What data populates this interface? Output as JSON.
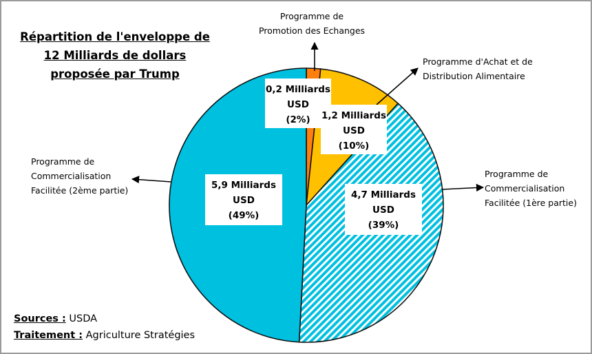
{
  "title_lines": [
    "Répartition de l'enveloppe de",
    "12 Milliards de dollars",
    "proposée par Trump"
  ],
  "footer": {
    "sources_key": "Sources :",
    "sources_value": "USDA",
    "treatment_key": "Traitement :",
    "treatment_value": "Agriculture Stratégies"
  },
  "chart_data": {
    "type": "pie",
    "unit": "Milliards USD",
    "slices": [
      {
        "name_lines": [
          "Programme de",
          "Promotion des Echanges"
        ],
        "value": 0.2,
        "value_text": "0,2 Milliards",
        "unit_text": "USD",
        "pct_text": "(2%)",
        "percent": 2,
        "color": "#ff7f0e",
        "pattern": "solid"
      },
      {
        "name_lines": [
          "Programme d'Achat et de",
          "Distribution Alimentaire"
        ],
        "value": 1.2,
        "value_text": "1,2 Milliards",
        "unit_text": "USD",
        "pct_text": "(10%)",
        "percent": 10,
        "color": "#ffc000",
        "pattern": "solid"
      },
      {
        "name_lines": [
          "Programme de",
          "Commercialisation",
          "Facilitée (1ère partie)"
        ],
        "value": 4.7,
        "value_text": "4,7 Milliards",
        "unit_text": "USD",
        "pct_text": "(39%)",
        "percent": 39,
        "color": "#00c0e0",
        "pattern": "diagonal-hatch"
      },
      {
        "name_lines": [
          "Programme de",
          "Commercialisation",
          "Facilitée (2ème partie)"
        ],
        "value": 5.9,
        "value_text": "5,9 Milliards",
        "unit_text": "USD",
        "pct_text": "(49%)",
        "percent": 49,
        "color": "#00c0e0",
        "pattern": "solid"
      }
    ]
  }
}
